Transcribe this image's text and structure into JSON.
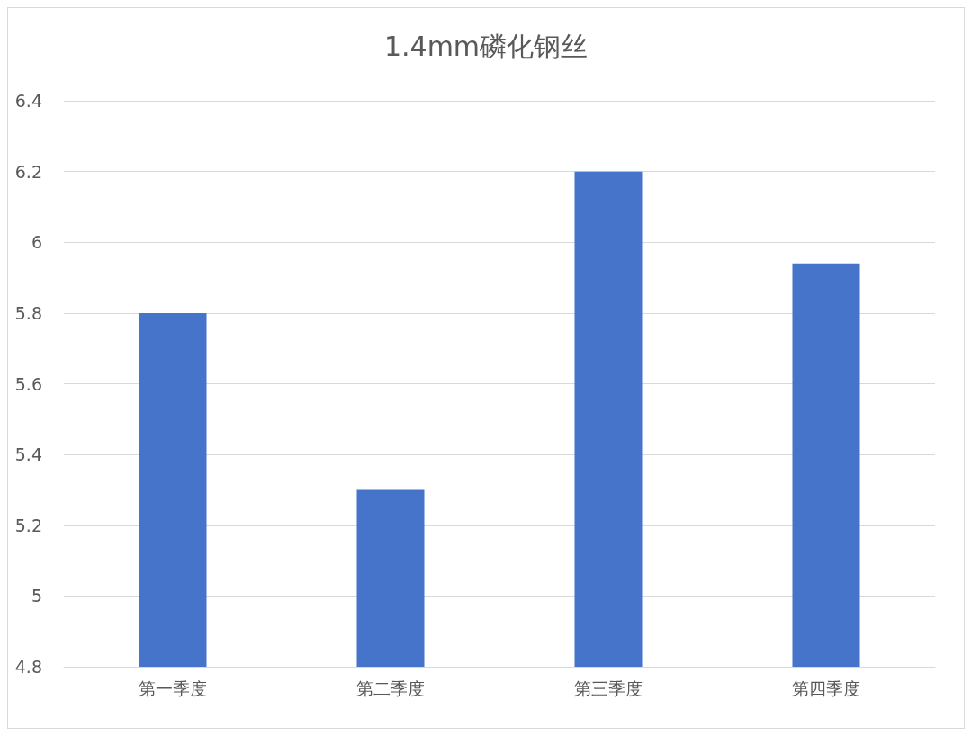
{
  "chart_data": {
    "type": "bar",
    "title": "1.4mm磷化钢丝",
    "categories": [
      "第一季度",
      "第二季度",
      "第三季度",
      "第四季度"
    ],
    "values": [
      5.8,
      5.3,
      6.2,
      5.94
    ],
    "color": "#4674cb",
    "ylim": [
      4.8,
      6.4
    ],
    "yticks": [
      4.8,
      5,
      5.2,
      5.4,
      5.6,
      5.8,
      6,
      6.2,
      6.4
    ],
    "grid": "y"
  }
}
